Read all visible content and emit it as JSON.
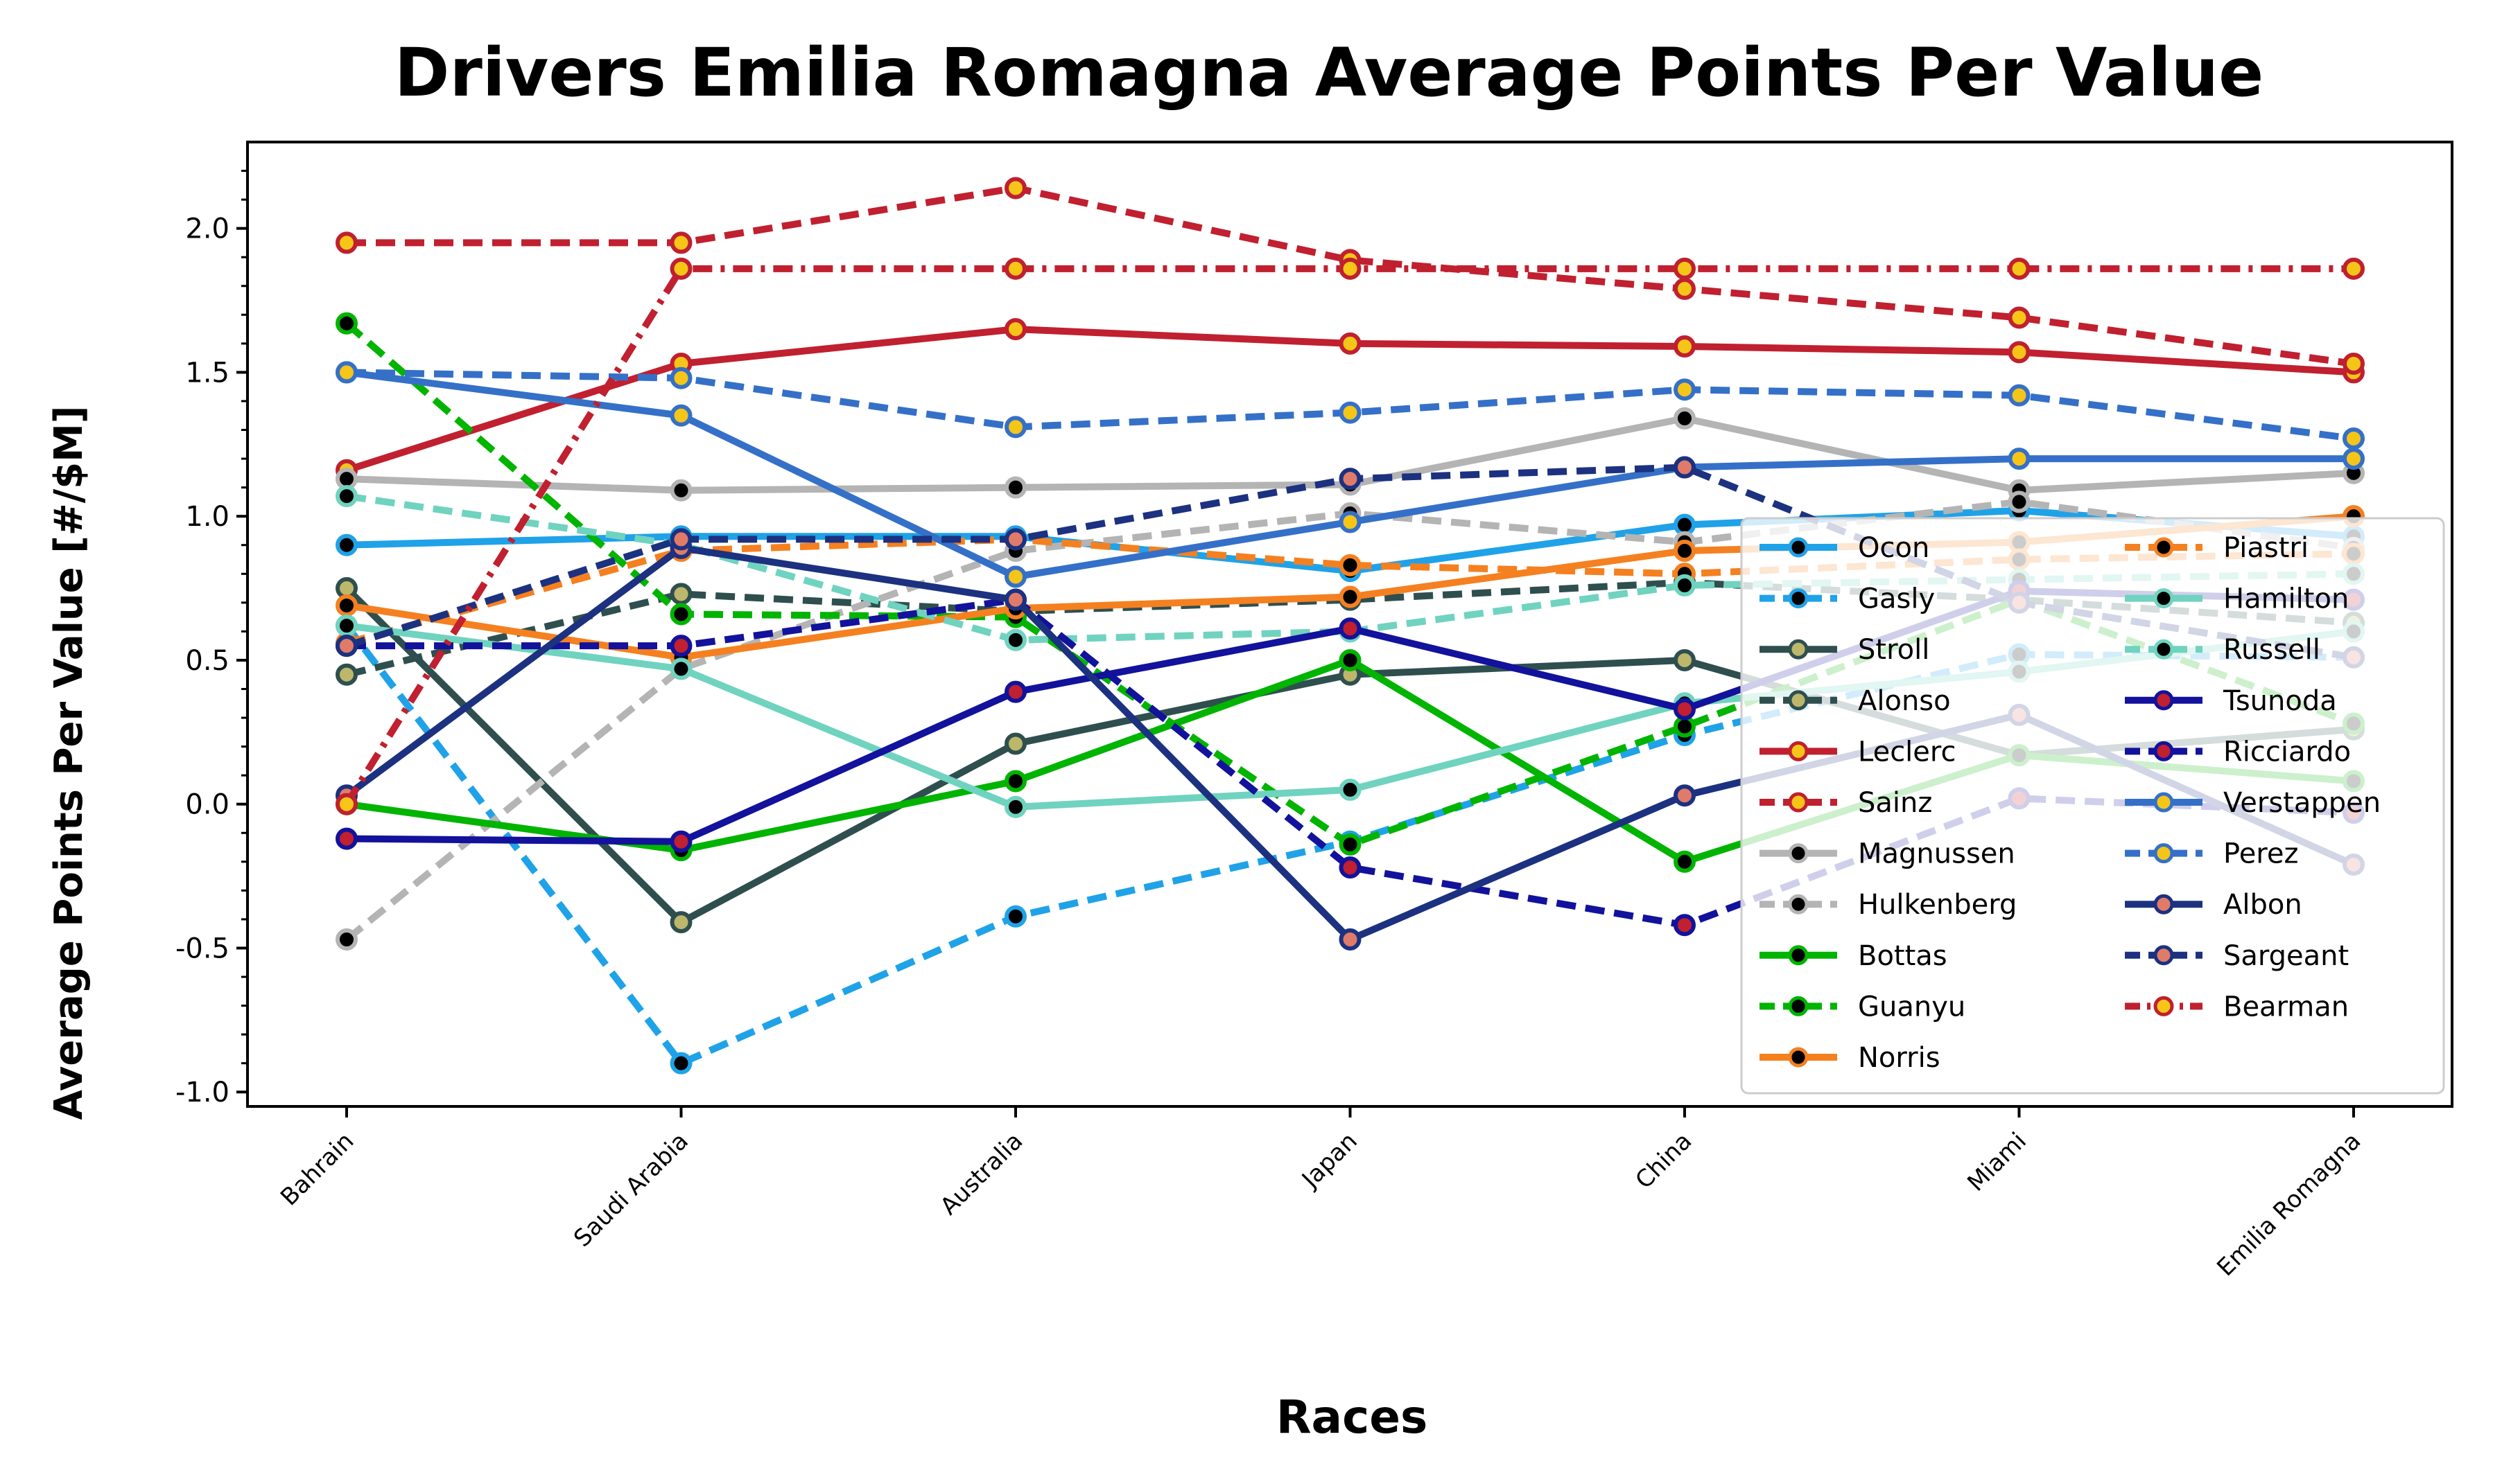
{
  "chart_data": {
    "type": "line",
    "title": "Drivers Emilia Romagna Average Points Per Value",
    "xlabel": "Races",
    "ylabel": "Average Points Per Value [#/$M]",
    "categories": [
      "Bahrain",
      "Saudi Arabia",
      "Australia",
      "Japan",
      "China",
      "Miami",
      "Emilia Romagna"
    ],
    "ylim": [
      -1.05,
      2.3
    ],
    "yticks": [
      "-1.0",
      "-0.5",
      "0.0",
      "0.5",
      "1.0",
      "1.5",
      "2.0"
    ],
    "ytick_values": [
      -1.0,
      -0.5,
      0.0,
      0.5,
      1.0,
      1.5,
      2.0
    ],
    "grid": false,
    "legend_position": "lower right, 2 columns",
    "series": [
      {
        "name": "Ocon",
        "color": "#1fa2e8",
        "marker_face": "#000000",
        "dash": "solid",
        "values": [
          0.9,
          0.93,
          0.93,
          0.81,
          0.97,
          1.02,
          0.93
        ]
      },
      {
        "name": "Gasly",
        "color": "#1fa2e8",
        "marker_face": "#000000",
        "dash": "dashed",
        "values": [
          0.62,
          -0.9,
          -0.39,
          -0.13,
          0.24,
          0.52,
          0.51
        ]
      },
      {
        "name": "Stroll",
        "color": "#2f4f4f",
        "marker_face": "#bdb76b",
        "dash": "solid",
        "values": [
          0.75,
          -0.41,
          0.21,
          0.45,
          0.5,
          0.17,
          0.26
        ]
      },
      {
        "name": "Alonso",
        "color": "#2f4f4f",
        "marker_face": "#bdb76b",
        "dash": "dashed",
        "values": [
          0.45,
          0.73,
          0.67,
          0.71,
          0.77,
          0.71,
          0.63
        ]
      },
      {
        "name": "Leclerc",
        "color": "#c0202f",
        "marker_face": "#f5c518",
        "dash": "solid",
        "values": [
          1.16,
          1.53,
          1.65,
          1.6,
          1.59,
          1.57,
          1.5
        ]
      },
      {
        "name": "Sainz",
        "color": "#c0202f",
        "marker_face": "#f5c518",
        "dash": "dashed",
        "values": [
          1.95,
          1.95,
          2.14,
          1.89,
          1.79,
          1.69,
          1.53
        ]
      },
      {
        "name": "Magnussen",
        "color": "#b4b4b4",
        "marker_face": "#000000",
        "dash": "solid",
        "values": [
          1.13,
          1.09,
          1.1,
          1.11,
          1.34,
          1.09,
          1.15
        ]
      },
      {
        "name": "Hulkenberg",
        "color": "#b4b4b4",
        "marker_face": "#000000",
        "dash": "dashed",
        "values": [
          -0.47,
          0.47,
          0.88,
          1.01,
          0.91,
          1.05,
          0.89
        ]
      },
      {
        "name": "Bottas",
        "color": "#00b400",
        "marker_face": "#000000",
        "dash": "solid",
        "values": [
          0.0,
          -0.16,
          0.08,
          0.5,
          -0.2,
          0.17,
          0.08
        ]
      },
      {
        "name": "Guanyu",
        "color": "#00b400",
        "marker_face": "#000000",
        "dash": "dashed",
        "values": [
          1.67,
          0.66,
          0.65,
          -0.14,
          0.27,
          0.71,
          0.28
        ]
      },
      {
        "name": "Norris",
        "color": "#f58020",
        "marker_face": "#000000",
        "dash": "solid",
        "values": [
          0.69,
          0.51,
          0.68,
          0.72,
          0.88,
          0.91,
          1.0
        ]
      },
      {
        "name": "Piastri",
        "color": "#f58020",
        "marker_face": "#000000",
        "dash": "dashed",
        "values": [
          0.56,
          0.88,
          0.92,
          0.83,
          0.8,
          0.85,
          0.87
        ]
      },
      {
        "name": "Hamilton",
        "color": "#6fd3bf",
        "marker_face": "#000000",
        "dash": "solid",
        "values": [
          0.62,
          0.47,
          -0.01,
          0.05,
          0.35,
          0.46,
          0.6
        ]
      },
      {
        "name": "Russell",
        "color": "#6fd3bf",
        "marker_face": "#000000",
        "dash": "dashed",
        "values": [
          1.07,
          0.9,
          0.57,
          0.6,
          0.76,
          0.78,
          0.8
        ]
      },
      {
        "name": "Tsunoda",
        "color": "#12129c",
        "marker_face": "#c0202f",
        "dash": "solid",
        "values": [
          -0.12,
          -0.13,
          0.39,
          0.61,
          0.33,
          0.74,
          0.71
        ]
      },
      {
        "name": "Ricciardo",
        "color": "#12129c",
        "marker_face": "#c0202f",
        "dash": "dashed",
        "values": [
          0.55,
          0.55,
          0.71,
          -0.22,
          -0.42,
          0.02,
          -0.03
        ]
      },
      {
        "name": "Verstappen",
        "color": "#3570c8",
        "marker_face": "#f5c518",
        "dash": "solid",
        "values": [
          1.5,
          1.35,
          0.79,
          0.98,
          1.17,
          1.2,
          1.2
        ]
      },
      {
        "name": "Perez",
        "color": "#3570c8",
        "marker_face": "#f5c518",
        "dash": "dashed",
        "values": [
          1.5,
          1.48,
          1.31,
          1.36,
          1.44,
          1.42,
          1.27
        ]
      },
      {
        "name": "Albon",
        "color": "#1c3180",
        "marker_face": "#e07b6a",
        "dash": "solid",
        "values": [
          0.03,
          0.89,
          0.71,
          -0.47,
          0.03,
          0.31,
          -0.21
        ]
      },
      {
        "name": "Sargeant",
        "color": "#1c3180",
        "marker_face": "#e07b6a",
        "dash": "dashed",
        "values": [
          0.55,
          0.92,
          0.92,
          1.13,
          1.17,
          0.7,
          0.51
        ]
      },
      {
        "name": "Bearman",
        "color": "#c0202f",
        "marker_face": "#f5c518",
        "dash": "dashdot",
        "values": [
          0.0,
          1.86,
          1.86,
          1.86,
          1.86,
          1.86,
          1.86
        ]
      }
    ]
  }
}
